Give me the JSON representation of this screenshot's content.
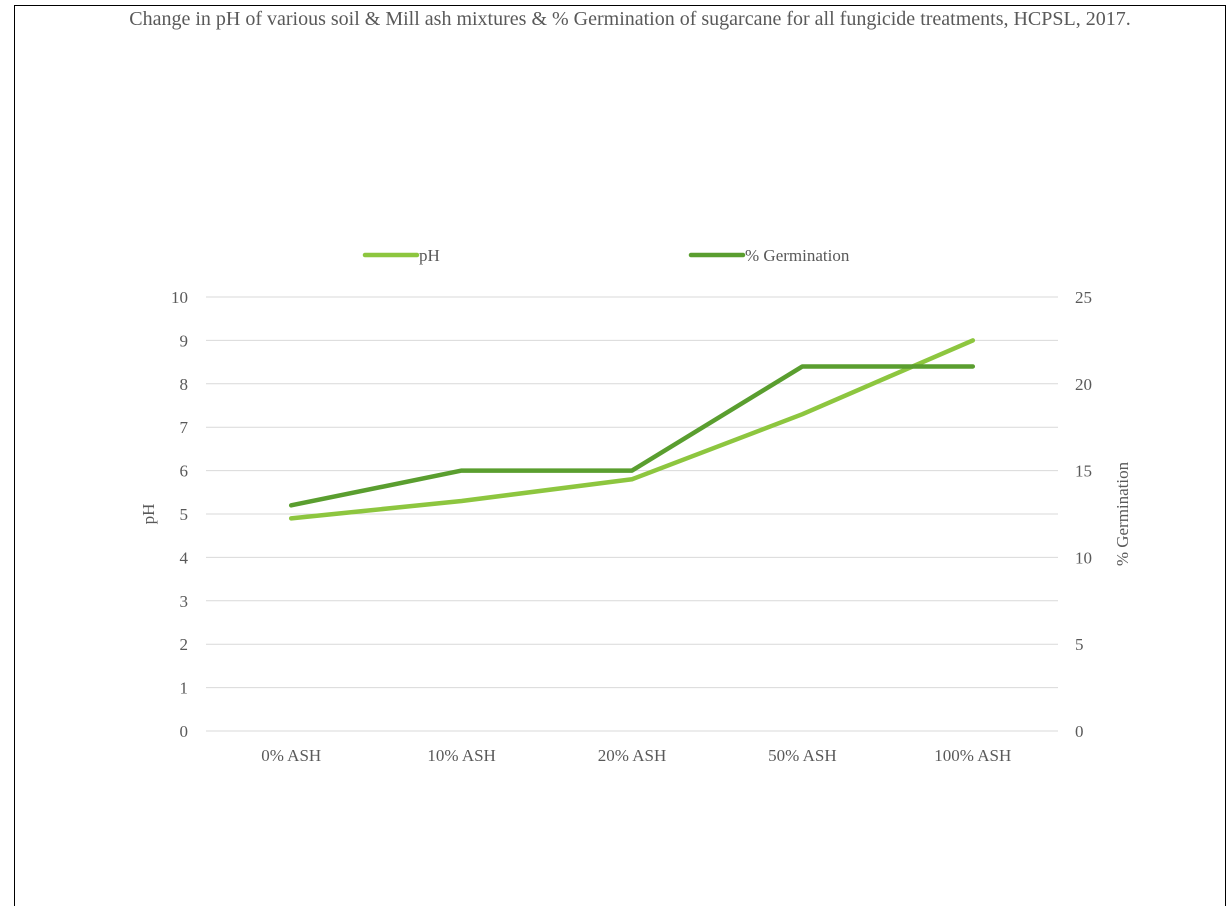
{
  "chart_data": {
    "type": "line",
    "title": "Change in pH of various soil & Mill ash mixtures & % Germination of sugarcane for all fungicide treatments, HCPSL, 2017.",
    "categories": [
      "0% ASH",
      "10% ASH",
      "20% ASH",
      "50% ASH",
      "100% ASH"
    ],
    "series": [
      {
        "name": "pH",
        "axis": "left",
        "color": "#8DC63F",
        "values": [
          4.9,
          5.3,
          5.8,
          7.3,
          9.0
        ]
      },
      {
        "name": "% Germination",
        "axis": "right",
        "color": "#5A9E2F",
        "values": [
          13,
          15,
          15,
          21,
          21
        ]
      }
    ],
    "ylabel": "pH",
    "ylim": [
      0,
      10
    ],
    "yticks": [
      "0",
      "1",
      "2",
      "3",
      "4",
      "5",
      "6",
      "7",
      "8",
      "9",
      "10"
    ],
    "y2label": "% Germination",
    "y2lim": [
      0,
      25
    ],
    "y2ticks": [
      "0",
      "5",
      "10",
      "15",
      "20",
      "25"
    ],
    "grid": true,
    "legend_position": "top"
  }
}
